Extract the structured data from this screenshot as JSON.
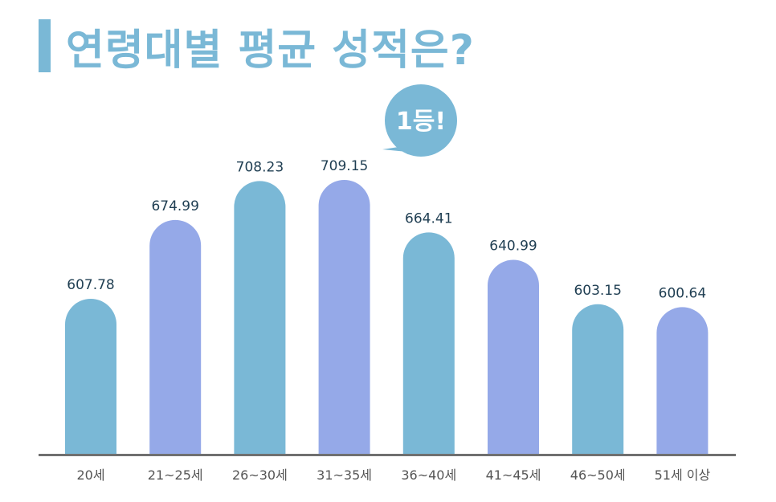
{
  "title": "연령대별 평균 성적은?",
  "callout": {
    "text": "1등!",
    "target_index": 3
  },
  "colors": {
    "accent": "#7ab8d6",
    "bar_a": "#7ab8d6",
    "bar_b": "#95a9e8",
    "baseline": "#707070",
    "value_text": "#1f3e52"
  },
  "chart_data": {
    "type": "bar",
    "title": "연령대별 평균 성적은?",
    "categories": [
      "20세",
      "21~25세",
      "26~30세",
      "31~35세",
      "36~40세",
      "41~45세",
      "46~50세",
      "51세 이상"
    ],
    "values": [
      607.78,
      674.99,
      708.23,
      709.15,
      664.41,
      640.99,
      603.15,
      600.64
    ],
    "value_labels": [
      "607.78",
      "674.99",
      "708.23",
      "709.15",
      "664.41",
      "640.99",
      "603.15",
      "600.64"
    ],
    "bar_colors": [
      "#7ab8d6",
      "#95a9e8",
      "#7ab8d6",
      "#95a9e8",
      "#7ab8d6",
      "#95a9e8",
      "#7ab8d6",
      "#95a9e8"
    ],
    "xlabel": "",
    "ylabel": "",
    "grid": false,
    "legend": "none"
  }
}
